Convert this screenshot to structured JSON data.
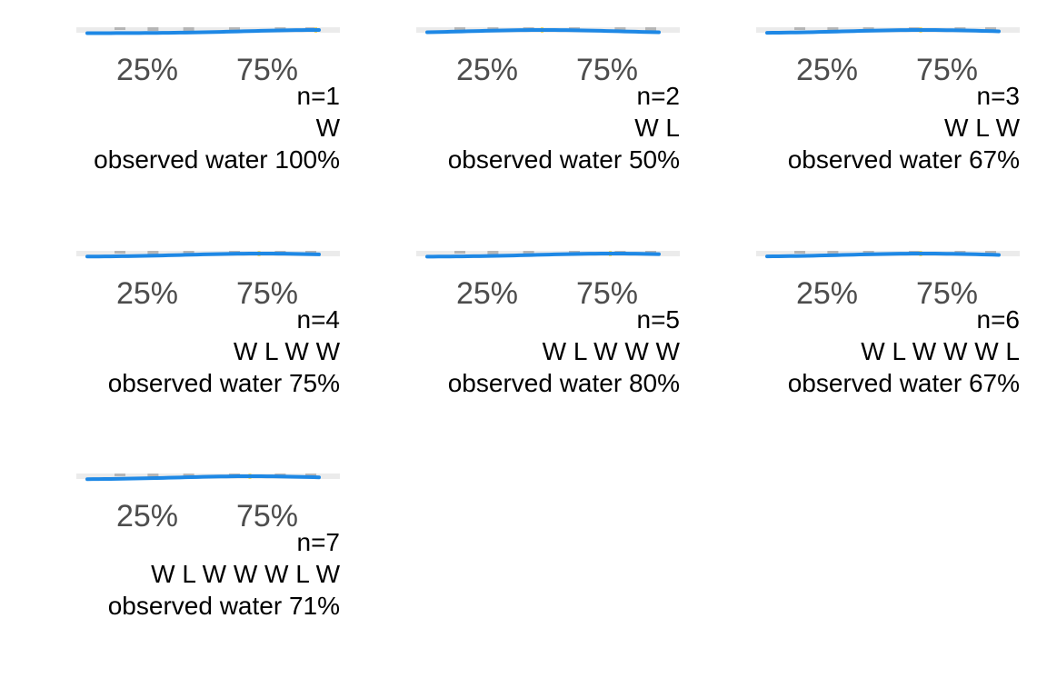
{
  "colors": {
    "panel_background": "#ebebeb",
    "posterior_line": "#1e88e5",
    "bar_gray": "#a0a0a0",
    "highlight_bar": "#e8d66b",
    "tick_text": "#4d4d4d",
    "caption_text": "#000000"
  },
  "chart_data": [
    {
      "type": "line",
      "facet": 1,
      "x_tick_labels": [
        "25%",
        "75%"
      ],
      "caption_count": "n=1",
      "caption_sequence": "W",
      "caption_observed": "observed water 100%",
      "observed_water_pct": 100
    },
    {
      "type": "line",
      "facet": 2,
      "x_tick_labels": [
        "25%",
        "75%"
      ],
      "caption_count": "n=2",
      "caption_sequence": "W L",
      "caption_observed": "observed water 50%",
      "observed_water_pct": 50
    },
    {
      "type": "line",
      "facet": 3,
      "x_tick_labels": [
        "25%",
        "75%"
      ],
      "caption_count": "n=3",
      "caption_sequence": "W L W",
      "caption_observed": "observed water 67%",
      "observed_water_pct": 67
    },
    {
      "type": "line",
      "facet": 4,
      "x_tick_labels": [
        "25%",
        "75%"
      ],
      "caption_count": "n=4",
      "caption_sequence": "W L W W",
      "caption_observed": "observed water 75%",
      "observed_water_pct": 75
    },
    {
      "type": "line",
      "facet": 5,
      "x_tick_labels": [
        "25%",
        "75%"
      ],
      "caption_count": "n=5",
      "caption_sequence": "W L W W W",
      "caption_observed": "observed water 80%",
      "observed_water_pct": 80
    },
    {
      "type": "line",
      "facet": 6,
      "x_tick_labels": [
        "25%",
        "75%"
      ],
      "caption_count": "n=6",
      "caption_sequence": "W L W W W L",
      "caption_observed": "observed water 67%",
      "observed_water_pct": 67
    },
    {
      "type": "line",
      "facet": 7,
      "x_tick_labels": [
        "25%",
        "75%"
      ],
      "caption_count": "n=7",
      "caption_sequence": "W L W W W L W",
      "caption_observed": "observed water 71%",
      "observed_water_pct": 71
    }
  ]
}
